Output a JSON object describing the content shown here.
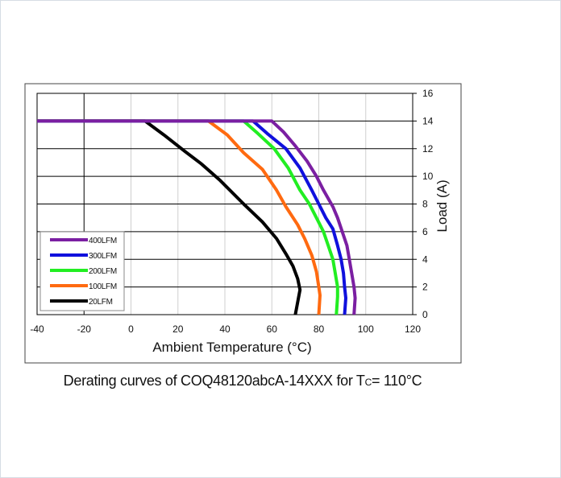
{
  "chart_data": {
    "type": "line",
    "xlabel": "Ambient Temperature (°C)",
    "ylabel": "Load (A)",
    "xlim": [
      -40,
      120
    ],
    "ylim": [
      0,
      16
    ],
    "xticks": [
      -40,
      -20,
      0,
      20,
      40,
      60,
      80,
      100,
      120
    ],
    "yticks": [
      0,
      2,
      4,
      6,
      8,
      10,
      12,
      14,
      16
    ],
    "grid": true,
    "legend_position": "bottom-left",
    "series": [
      {
        "name": "400LFM",
        "color": "#7b1fa2",
        "points": [
          [
            -40,
            14
          ],
          [
            60,
            14
          ],
          [
            65,
            13.2
          ],
          [
            70,
            12.2
          ],
          [
            75,
            11.1
          ],
          [
            79,
            10
          ],
          [
            82,
            9
          ],
          [
            86,
            7.8
          ],
          [
            88,
            7
          ],
          [
            90,
            6
          ],
          [
            92,
            5
          ],
          [
            93,
            4
          ],
          [
            94,
            3
          ],
          [
            95,
            2
          ],
          [
            95.5,
            1.2
          ],
          [
            95,
            0
          ]
        ]
      },
      {
        "name": "300LFM",
        "color": "#1010dd",
        "points": [
          [
            -40,
            14
          ],
          [
            52,
            14
          ],
          [
            58,
            13.1
          ],
          [
            66,
            12
          ],
          [
            72,
            10.6
          ],
          [
            77,
            9
          ],
          [
            80,
            8
          ],
          [
            83,
            7
          ],
          [
            86,
            6.2
          ],
          [
            88,
            5
          ],
          [
            89.5,
            4
          ],
          [
            90.5,
            3
          ],
          [
            91,
            2
          ],
          [
            91.5,
            1.2
          ],
          [
            91,
            0
          ]
        ]
      },
      {
        "name": "200LFM",
        "color": "#22ee22",
        "points": [
          [
            -40,
            14
          ],
          [
            48,
            14
          ],
          [
            54,
            13.1
          ],
          [
            61,
            12
          ],
          [
            67,
            10.6
          ],
          [
            72,
            9
          ],
          [
            76,
            8
          ],
          [
            79,
            7
          ],
          [
            82,
            6
          ],
          [
            84,
            5
          ],
          [
            86,
            4
          ],
          [
            87,
            3
          ],
          [
            88,
            2
          ],
          [
            88,
            1.3
          ],
          [
            87.5,
            0
          ]
        ]
      },
      {
        "name": "100LFM",
        "color": "#ff6a10",
        "points": [
          [
            -40,
            14
          ],
          [
            33,
            14
          ],
          [
            41,
            13
          ],
          [
            48,
            11.7
          ],
          [
            56,
            10.5
          ],
          [
            62,
            9
          ],
          [
            66,
            7.8
          ],
          [
            71,
            6.5
          ],
          [
            74,
            5.5
          ],
          [
            77,
            4.3
          ],
          [
            79,
            3.1
          ],
          [
            80,
            2
          ],
          [
            80.5,
            1.4
          ],
          [
            80,
            0
          ]
        ]
      },
      {
        "name": "20LFM",
        "color": "#000000",
        "points": [
          [
            -40,
            14
          ],
          [
            6,
            14
          ],
          [
            14,
            13
          ],
          [
            23,
            11.8
          ],
          [
            30,
            10.9
          ],
          [
            38,
            9.7
          ],
          [
            48,
            8
          ],
          [
            56,
            6.7
          ],
          [
            62,
            5.5
          ],
          [
            66,
            4.4
          ],
          [
            69,
            3.5
          ],
          [
            71,
            2.6
          ],
          [
            72,
            1.8
          ],
          [
            70,
            0
          ]
        ]
      }
    ]
  },
  "caption": {
    "main": "Derating curves of COQ48120abcA-14XXX for T",
    "subscript": "C",
    "tail": "= 110°C"
  }
}
